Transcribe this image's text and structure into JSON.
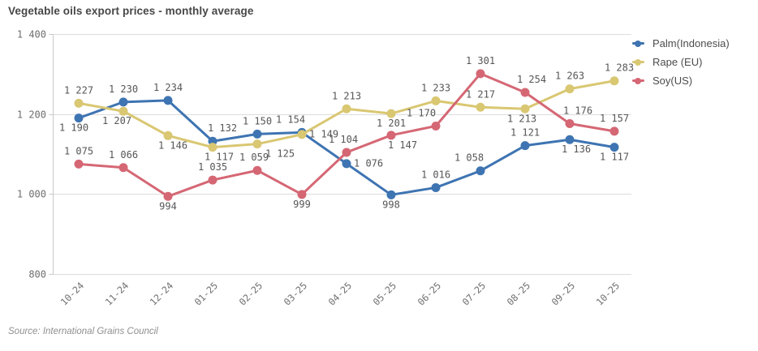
{
  "title": "Vegetable oils export prices - monthly average",
  "source": "Source: International Grains Council",
  "chart_data": {
    "type": "line",
    "title": "Vegetable oils export prices - monthly average",
    "categories": [
      "10-24",
      "11-24",
      "12-24",
      "01-25",
      "02-25",
      "03-25",
      "04-25",
      "05-25",
      "06-25",
      "07-25",
      "08-25",
      "09-25",
      "10-25"
    ],
    "series": [
      {
        "name": "Palm(Indonesia)",
        "color": "#3E74B2",
        "values": [
          1190,
          1230,
          1234,
          1132,
          1150,
          1154,
          1076,
          998,
          1016,
          1058,
          1121,
          1136,
          1117
        ]
      },
      {
        "name": "Rape (EU)",
        "color": "#D9C772",
        "values": [
          1227,
          1207,
          1146,
          1117,
          1125,
          1149,
          1213,
          1201,
          1233,
          1217,
          1213,
          1263,
          1283
        ]
      },
      {
        "name": "Soy(US)",
        "color": "#D56774",
        "values": [
          1075,
          1066,
          994,
          1035,
          1059,
          999,
          1104,
          1147,
          1170,
          1301,
          1254,
          1176,
          1157
        ]
      }
    ],
    "xlabel": "",
    "ylabel": "",
    "ylim": [
      800,
      1400
    ],
    "y_ticks": [
      800,
      1000,
      1200,
      1400
    ],
    "grid": "horizontal",
    "legend_position": "right-top",
    "data_labels": "on",
    "number_format": "space thousands separator (e.g. 1 227)"
  },
  "colors": {
    "grid": "#dcdcdc",
    "axis": "#c9c9c9",
    "axis_text": "#6e6e6e",
    "data_label_text": "#565656"
  }
}
